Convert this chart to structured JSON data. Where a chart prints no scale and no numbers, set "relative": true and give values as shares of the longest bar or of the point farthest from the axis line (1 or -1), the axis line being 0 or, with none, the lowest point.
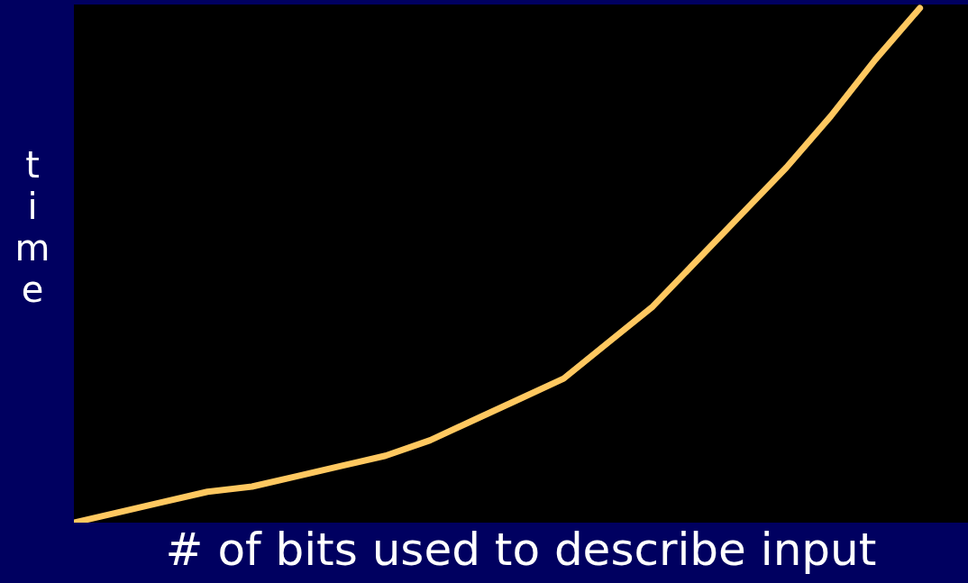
{
  "chart_data": {
    "type": "line",
    "relative": true,
    "xlabel": "# of bits used to describe input",
    "ylabel": "time",
    "categories": [
      null,
      null,
      null,
      null,
      null,
      null,
      null,
      null,
      null,
      null,
      null,
      null,
      null,
      null,
      null,
      null,
      null,
      null,
      null,
      null,
      null
    ],
    "grid": false,
    "legend": false,
    "marker": "none",
    "line_style": "solid",
    "series": [
      {
        "color": "#ffc860",
        "values": [
          0,
          0.02,
          0.04,
          0.06,
          0.07,
          0.09,
          0.11,
          0.13,
          0.16,
          0.2,
          0.24,
          0.28,
          0.35,
          0.42,
          0.51,
          0.6,
          0.69,
          0.79,
          0.9,
          1,
          null
        ]
      }
    ]
  }
}
